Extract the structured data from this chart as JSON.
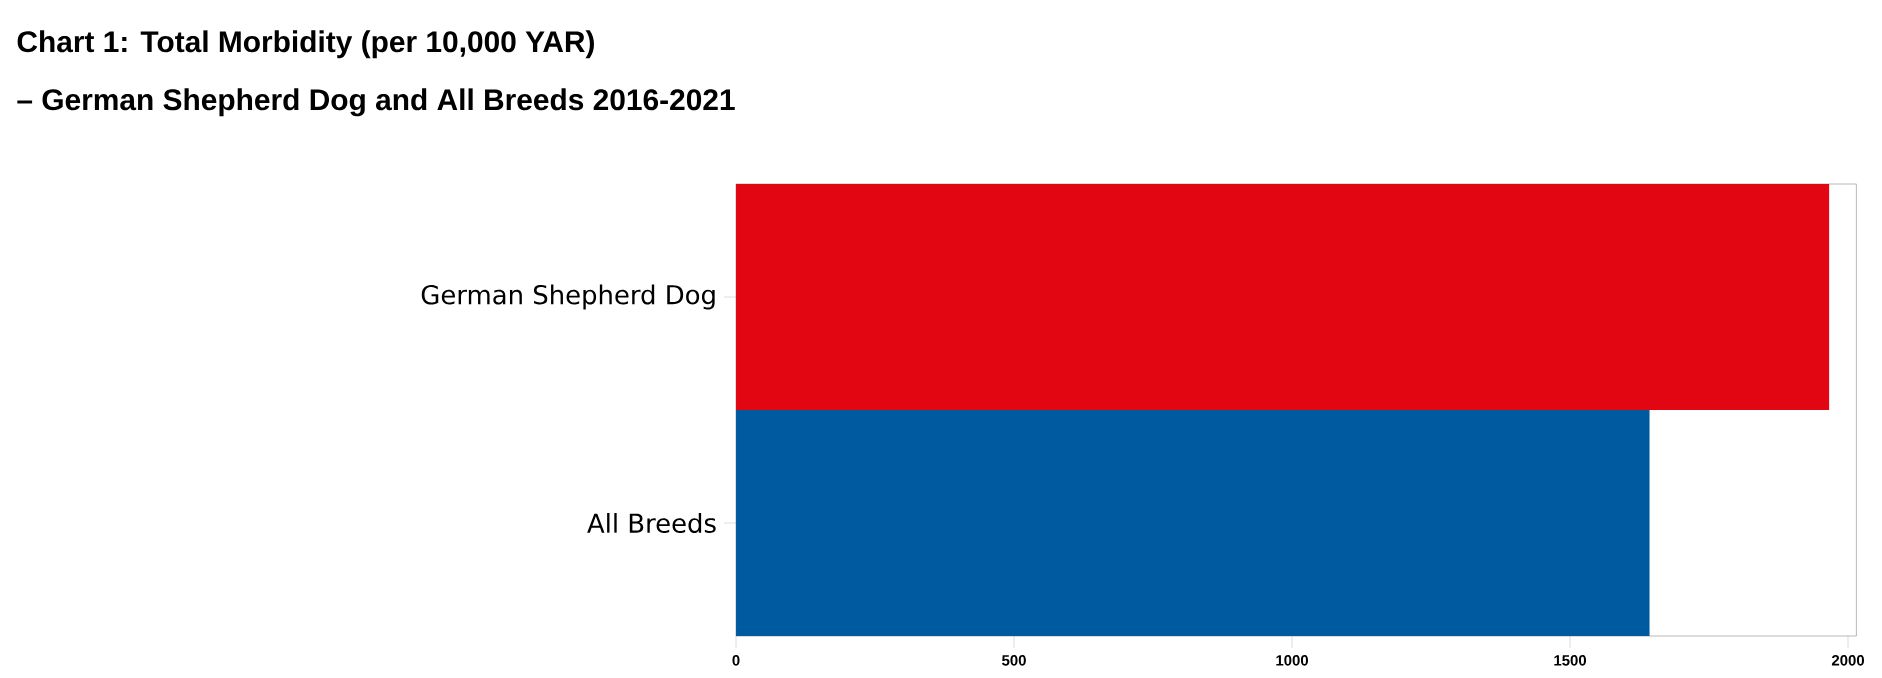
{
  "chart_data": {
    "type": "bar",
    "orientation": "horizontal",
    "title": "Chart 1: Total Morbidity (per 10,000 YAR)",
    "subtitle": "–  German Shepherd Dog and All Breeds 2016-2021",
    "categories": [
      "German Shepherd Dog",
      "All Breeds"
    ],
    "values": [
      1966,
      1643
    ],
    "colors": [
      "#e20613",
      "#005aa0"
    ],
    "xlim": [
      0,
      2015
    ],
    "xticks": [
      0,
      500,
      1000,
      1500,
      2000
    ]
  }
}
